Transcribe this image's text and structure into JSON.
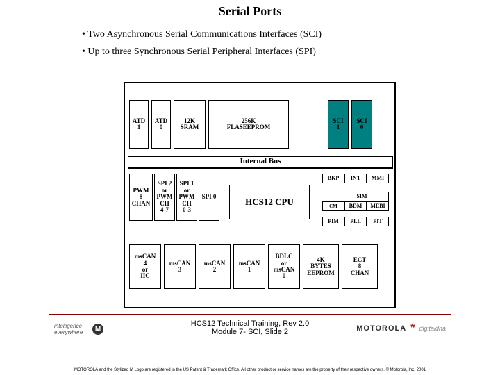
{
  "title": "Serial Ports",
  "bullets": [
    "Two Asynchronous Serial Communications Interfaces (SCI)",
    "Up to three Synchronous Serial Peripheral Interfaces (SPI)"
  ],
  "chip": {
    "row1": {
      "atd1": "ATD\n1",
      "atd0": "ATD\n0",
      "sram": "12K\nSRAM",
      "flash": "256K\nFLASEEPROM",
      "sci1": "SCI\n1",
      "sci0": "SCI\n0"
    },
    "bus": "Internal Bus",
    "row2": {
      "pwm": "PWM\n8\nCHAN",
      "spi2": "SPI 2\nor\nPWM\nCH\n4-7",
      "spi1": "SPI 1\nor\nPWM\nCH\n0-3",
      "spi0": "SPI 0",
      "cpu": "HCS12 CPU",
      "top3": {
        "bkp": "BKP",
        "int": "INT",
        "mmi": "MMI"
      },
      "sim": "SIM",
      "mid3": {
        "cm": "CM",
        "bdm": "BDM",
        "mebi": "MEBI"
      },
      "bot3": {
        "pim": "PIM",
        "pll": "PLL",
        "pit": "PIT"
      }
    },
    "row3": {
      "mscan4": "msCAN\n4\nor\nIIC",
      "mscan3": "msCAN\n3",
      "mscan2": "msCAN\n2",
      "mscan1": "msCAN\n1",
      "bdlc": "BDLC\nor\nmsCAN\n0",
      "eeprom": "4K\nBYTES\nEEPROM",
      "ect": "ECT\n8\nCHAN"
    }
  },
  "training": {
    "line1": "HCS12 Technical Training,  Rev 2.0",
    "line2": "Module 7- SCI, Slide 2"
  },
  "logos": {
    "left": "intelligence everywhere",
    "motorola": "MOTOROLA",
    "dd": "digitaldna"
  },
  "legal": "MOTOROLA and the Stylized M Logo are registered in the US Patent & Trademark Office. All other product or service names are the property of their respective owners. © Motorola, Inc. 2001",
  "colors": {
    "sci_bg": "#008080",
    "rule": "#8b0000"
  }
}
